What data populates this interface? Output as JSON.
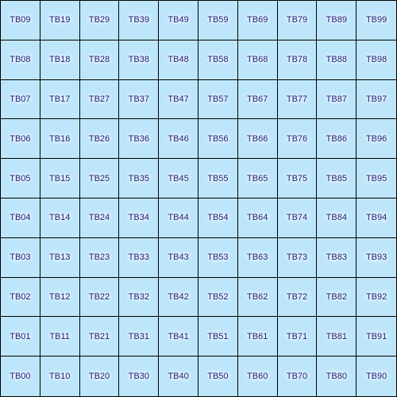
{
  "colors": {
    "cell_background": "#bde6fb",
    "grid_lines": "#000000",
    "label_text": "#20207a",
    "label_glow": "#ffffff"
  },
  "grid": {
    "columns": 10,
    "rows": 10,
    "rows_top_to_bottom": [
      [
        "TB09",
        "TB19",
        "TB29",
        "TB39",
        "TB49",
        "TB59",
        "TB69",
        "TB79",
        "TB89",
        "TB99"
      ],
      [
        "TB08",
        "TB18",
        "TB28",
        "TB38",
        "TB48",
        "TB58",
        "TB68",
        "TB78",
        "TB88",
        "TB98"
      ],
      [
        "TB07",
        "TB17",
        "TB27",
        "TB37",
        "TB47",
        "TB57",
        "TB67",
        "TB77",
        "TB87",
        "TB97"
      ],
      [
        "TB06",
        "TB16",
        "TB26",
        "TB36",
        "TB46",
        "TB56",
        "TB66",
        "TB76",
        "TB86",
        "TB96"
      ],
      [
        "TB05",
        "TB15",
        "TB25",
        "TB35",
        "TB45",
        "TB55",
        "TB65",
        "TB75",
        "TB85",
        "TB95"
      ],
      [
        "TB04",
        "TB14",
        "TB24",
        "TB34",
        "TB44",
        "TB54",
        "TB64",
        "TB74",
        "TB84",
        "TB94"
      ],
      [
        "TB03",
        "TB13",
        "TB23",
        "TB33",
        "TB43",
        "TB53",
        "TB63",
        "TB73",
        "TB83",
        "TB93"
      ],
      [
        "TB02",
        "TB12",
        "TB22",
        "TB32",
        "TB42",
        "TB52",
        "TB62",
        "TB72",
        "TB82",
        "TB92"
      ],
      [
        "TB01",
        "TB11",
        "TB21",
        "TB31",
        "TB41",
        "TB51",
        "TB61",
        "TB71",
        "TB81",
        "TB91"
      ],
      [
        "TB00",
        "TB10",
        "TB20",
        "TB30",
        "TB40",
        "TB50",
        "TB60",
        "TB70",
        "TB80",
        "TB90"
      ]
    ]
  }
}
